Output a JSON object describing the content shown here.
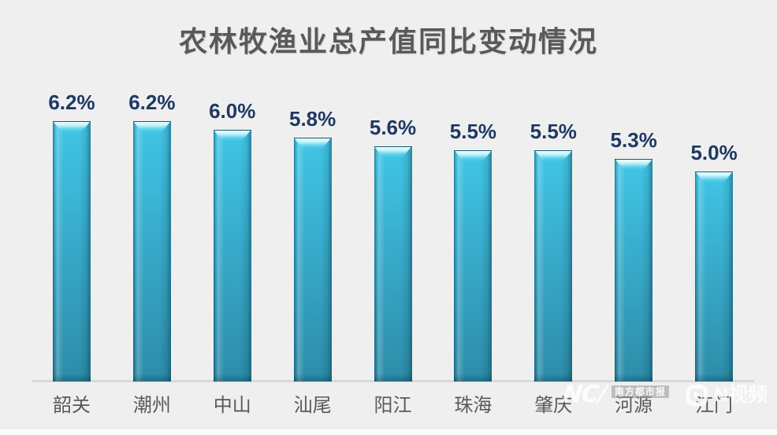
{
  "chart_data": {
    "type": "bar",
    "title": "农林牧渔业总产值同比变动情况",
    "categories": [
      "韶关",
      "潮州",
      "中山",
      "汕尾",
      "阳江",
      "珠海",
      "肇庆",
      "河源",
      "江门"
    ],
    "values": [
      6.2,
      6.2,
      6.0,
      5.8,
      5.6,
      5.5,
      5.5,
      5.3,
      5.0
    ],
    "value_labels": [
      "6.2%",
      "6.2%",
      "6.0%",
      "5.8%",
      "5.6%",
      "5.5%",
      "5.5%",
      "5.3%",
      "5.0%"
    ],
    "unit": "%",
    "ylim": [
      0,
      6.2
    ],
    "grid": false,
    "legend": false,
    "xlabel": "",
    "ylabel": "",
    "colors": {
      "background": "#EFEFEF",
      "bar_top": "#41C6E6",
      "bar_mid": "#37A9C9",
      "bar_bottom": "#2D8CA8",
      "bar_highlight": "#CDF4FB",
      "value_label": "#1F3864",
      "category_label": "#595959",
      "title": "#595959",
      "axis_line": "#D9D9D9"
    }
  },
  "watermark": {
    "left_logo_text": "NC/",
    "left_box_text": "南方都市报",
    "right_text": "N视频"
  }
}
